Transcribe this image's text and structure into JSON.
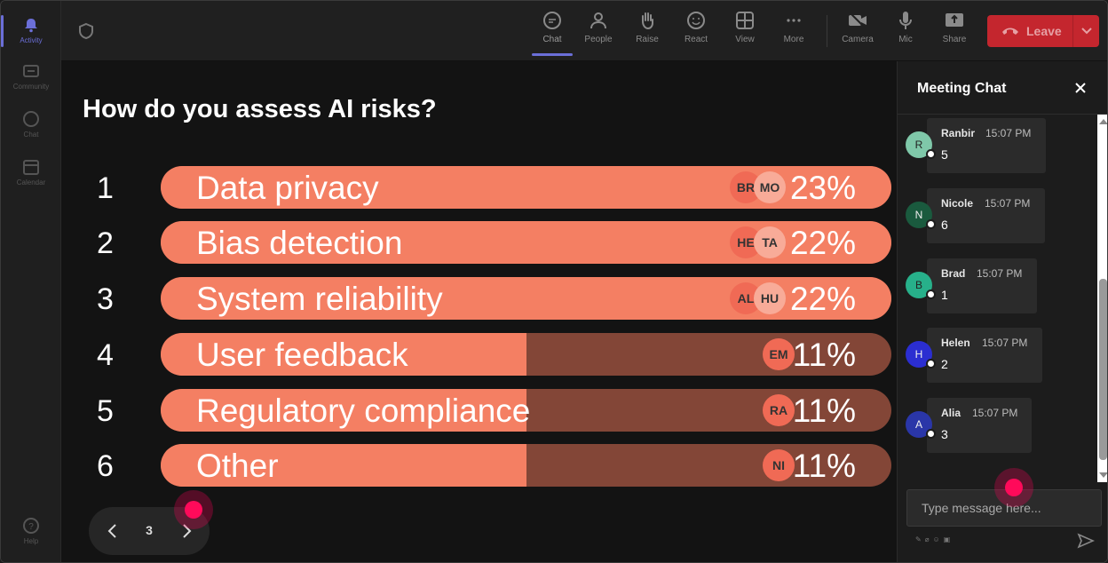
{
  "rail": {
    "items": [
      {
        "label": "Activity",
        "icon": "bell-icon"
      },
      {
        "label": "Community",
        "icon": "community-icon"
      },
      {
        "label": "Chat",
        "icon": "chat-icon"
      },
      {
        "label": "Calendar",
        "icon": "calendar-icon"
      }
    ],
    "help": {
      "label": "Help",
      "icon": "help-icon"
    }
  },
  "toolbar": {
    "buttons": [
      {
        "label": "Chat",
        "icon": "chat-icon"
      },
      {
        "label": "People",
        "icon": "people-icon"
      },
      {
        "label": "Raise",
        "icon": "hand-icon"
      },
      {
        "label": "React",
        "icon": "smiley-icon"
      },
      {
        "label": "View",
        "icon": "grid-icon"
      },
      {
        "label": "More",
        "icon": "more-icon"
      },
      {
        "label": "Camera",
        "icon": "camera-off-icon"
      },
      {
        "label": "Mic",
        "icon": "mic-icon"
      },
      {
        "label": "Share",
        "icon": "share-icon"
      }
    ],
    "leave_label": "Leave"
  },
  "poll": {
    "question": "How do you assess AI risks?",
    "options": [
      {
        "number": "1",
        "label": "Data privacy",
        "percent": "23%",
        "fill_fraction": 1.0,
        "avatars": [
          "BR",
          "MO"
        ]
      },
      {
        "number": "2",
        "label": "Bias detection",
        "percent": "22%",
        "fill_fraction": 1.0,
        "avatars": [
          "HE",
          "TA"
        ]
      },
      {
        "number": "3",
        "label": "System reliability",
        "percent": "22%",
        "fill_fraction": 1.0,
        "avatars": [
          "AL",
          "HU"
        ]
      },
      {
        "number": "4",
        "label": "User feedback",
        "percent": "11%",
        "fill_fraction": 0.5,
        "avatars": [
          "EM"
        ]
      },
      {
        "number": "5",
        "label": "Regulatory compliance",
        "percent": "11%",
        "fill_fraction": 0.5,
        "avatars": [
          "RA"
        ]
      },
      {
        "number": "6",
        "label": "Other",
        "percent": "11%",
        "fill_fraction": 0.5,
        "avatars": [
          "NI"
        ]
      }
    ],
    "page": "3"
  },
  "chat": {
    "title": "Meeting Chat",
    "messages": [
      {
        "initial": "R",
        "name": "Ranbir",
        "time": "15:07 PM",
        "text": "5",
        "color": "#7fc8a9"
      },
      {
        "initial": "N",
        "name": "Nicole",
        "time": "15:07 PM",
        "text": "6",
        "color": "#1a5a3e"
      },
      {
        "initial": "B",
        "name": "Brad",
        "time": "15:07 PM",
        "text": "1",
        "color": "#27b08a"
      },
      {
        "initial": "H",
        "name": "Helen",
        "time": "15:07 PM",
        "text": "2",
        "color": "#2b2ed1"
      },
      {
        "initial": "A",
        "name": "Alia",
        "time": "15:07 PM",
        "text": "3",
        "color": "#2a36a8"
      }
    ],
    "placeholder": "Type message here..."
  },
  "colors": {
    "accent": "#6b6fd8",
    "leave": "#c4262e",
    "bar_fill": "#f47f63",
    "bar_track": "#834637"
  }
}
